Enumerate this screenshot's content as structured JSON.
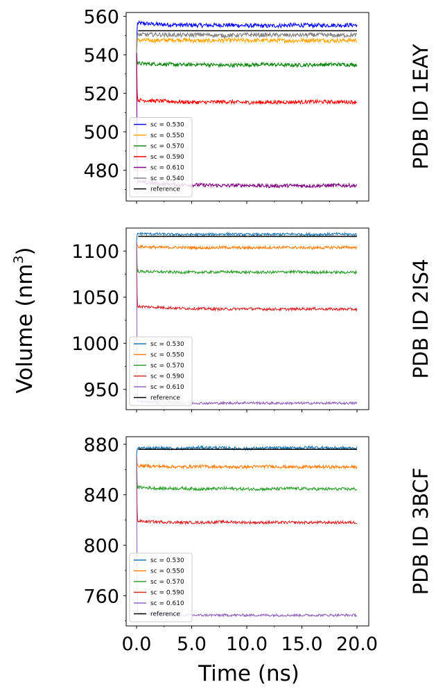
{
  "figure": {
    "ylabel_main": "Volume (nm",
    "ylabel_sup": "3",
    "ylabel_close": ")",
    "xlabel": "Time (ns)"
  },
  "chart_data": [
    {
      "type": "line",
      "title": "PDB ID 1EAY",
      "xlabel": "Time (ns)",
      "ylabel": "Volume (nm3)",
      "xlim": [
        0,
        20
      ],
      "ylim": [
        464,
        562
      ],
      "yticks": [
        480,
        500,
        520,
        540,
        560
      ],
      "yticklabels": [
        "480",
        "500",
        "520",
        "540",
        "560"
      ],
      "legend": "lower-left",
      "grid": false,
      "series": [
        {
          "name": "sc = 0.530",
          "color": "#0000ff",
          "start": 541,
          "values": [
            556.5,
            555.8,
            555.5,
            555.3,
            555.5,
            555.2,
            555.0,
            555.4,
            555.3,
            555.4,
            555.5
          ],
          "noise": 0.9
        },
        {
          "name": "sc = 0.550",
          "color": "#ffa500",
          "start": 541,
          "values": [
            547.5,
            547.5,
            547.8,
            547.2,
            547.6,
            547.4,
            547.5,
            547.3,
            547.6,
            547.4,
            547.6
          ],
          "noise": 0.9
        },
        {
          "name": "sc = 0.570",
          "color": "#008000",
          "start": 541,
          "values": [
            535.5,
            535.2,
            534.8,
            535.0,
            534.5,
            534.8,
            535.0,
            534.6,
            534.8,
            535.0,
            534.8
          ],
          "noise": 0.8
        },
        {
          "name": "sc = 0.590",
          "color": "#ff0000",
          "start": 541,
          "values": [
            516.5,
            516.0,
            515.5,
            515.3,
            515.6,
            515.2,
            515.3,
            515.4,
            515.6,
            515.5,
            515.5
          ],
          "noise": 0.8
        },
        {
          "name": "sc = 0.610",
          "color": "#800080",
          "start": 541,
          "values": [
            474.0,
            473.0,
            472.5,
            472.3,
            472.0,
            472.2,
            471.8,
            472.0,
            471.9,
            472.1,
            472.0
          ],
          "noise": 0.8
        },
        {
          "name": "sc = 0.540",
          "color": "#808080",
          "start": 541,
          "values": [
            550.5,
            550.5,
            550.2,
            550.5,
            550.0,
            550.4,
            550.3,
            550.2,
            550.4,
            550.1,
            550.3
          ],
          "noise": 0.9
        },
        {
          "name": "reference",
          "color": "#000000",
          "constant": 552.5
        }
      ]
    },
    {
      "type": "line",
      "title": "PDB ID 2IS4",
      "xlabel": "Time (ns)",
      "ylabel": "Volume (nm3)",
      "xlim": [
        0,
        20
      ],
      "ylim": [
        928,
        1125
      ],
      "yticks": [
        950,
        1000,
        1050,
        1100
      ],
      "yticklabels": [
        "950",
        "1000",
        "1050",
        "1100"
      ],
      "legend": "lower-left",
      "grid": false,
      "series": [
        {
          "name": "sc = 0.530",
          "color": "#1f77b4",
          "start": 1110,
          "values": [
            1119,
            1118.5,
            1118,
            1118,
            1118.5,
            1118,
            1118,
            1118.5,
            1118,
            1118.5,
            1118
          ],
          "noise": 1.1
        },
        {
          "name": "sc = 0.550",
          "color": "#ff7f0e",
          "start": 1110,
          "values": [
            1105,
            1104,
            1104,
            1103.5,
            1104,
            1103.5,
            1104,
            1104,
            1103.5,
            1104,
            1104
          ],
          "noise": 1.2
        },
        {
          "name": "sc = 0.570",
          "color": "#2ca02c",
          "start": 1110,
          "values": [
            1078,
            1077.5,
            1077,
            1077,
            1077.5,
            1077,
            1077,
            1077.5,
            1077,
            1077,
            1077
          ],
          "noise": 1.2
        },
        {
          "name": "sc = 0.590",
          "color": "#d62728",
          "start": 1110,
          "values": [
            1040,
            1039,
            1038,
            1037.5,
            1037,
            1037.5,
            1037,
            1037,
            1037.5,
            1037,
            1037
          ],
          "noise": 1.2
        },
        {
          "name": "sc = 0.610",
          "color": "#9467bd",
          "start": 1110,
          "values": [
            937,
            936,
            935.5,
            935,
            935,
            935.5,
            935,
            935,
            935,
            935,
            935
          ],
          "noise": 1.1
        },
        {
          "name": "reference",
          "color": "#000000",
          "constant": 1116
        }
      ]
    },
    {
      "type": "line",
      "title": "PDB ID 3BCF",
      "xlabel": "Time (ns)",
      "ylabel": "Volume (nm3)",
      "xlim": [
        0,
        20
      ],
      "ylim": [
        736,
        886
      ],
      "yticks": [
        760,
        800,
        840,
        880
      ],
      "yticklabels": [
        "760",
        "800",
        "840",
        "880"
      ],
      "xticks": [
        0,
        5,
        10,
        15,
        20
      ],
      "xticklabels": [
        "0.0",
        "5.0",
        "10.0",
        "15.0",
        "20.0"
      ],
      "legend": "lower-left",
      "grid": false,
      "series": [
        {
          "name": "sc = 0.530",
          "color": "#1f77b4",
          "start": 871,
          "values": [
            877,
            877,
            876.5,
            877.5,
            877,
            876.5,
            877,
            877,
            877.5,
            877,
            877
          ],
          "noise": 1.0
        },
        {
          "name": "sc = 0.550",
          "color": "#ff7f0e",
          "start": 871,
          "values": [
            863,
            862.5,
            862,
            862.5,
            862,
            862,
            862.5,
            862,
            862,
            862,
            862
          ],
          "noise": 1.0
        },
        {
          "name": "sc = 0.570",
          "color": "#2ca02c",
          "start": 871,
          "values": [
            846,
            845,
            845,
            844.5,
            845,
            844.5,
            844.5,
            845,
            844.5,
            844.5,
            844.5
          ],
          "noise": 1.0
        },
        {
          "name": "sc = 0.590",
          "color": "#d62728",
          "start": 871,
          "values": [
            819,
            818.5,
            818,
            818,
            818.5,
            818,
            818,
            818,
            818,
            818,
            818
          ],
          "noise": 0.9
        },
        {
          "name": "sc = 0.610",
          "color": "#9467bd",
          "start": 871,
          "values": [
            746,
            745,
            744.5,
            744.5,
            744.5,
            744.5,
            744.5,
            744.5,
            744.5,
            744.5,
            744.5
          ],
          "noise": 0.8
        },
        {
          "name": "reference",
          "color": "#000000",
          "constant": 876
        }
      ]
    }
  ]
}
